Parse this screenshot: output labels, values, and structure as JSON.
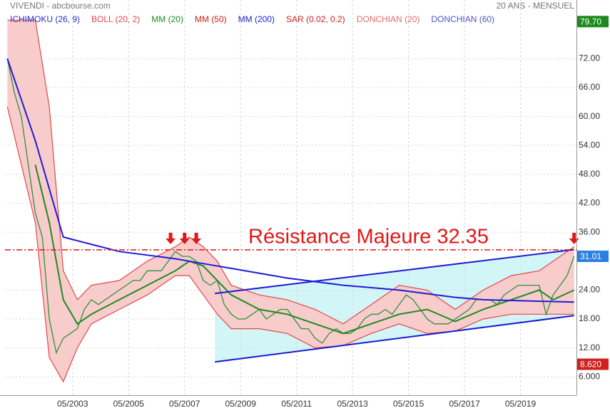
{
  "chart_data": {
    "type": "line",
    "title": "VIVENDI - abcbourse.com",
    "subtitle": "20 ANS - MENSUEL",
    "xlim": [
      "12/2000",
      "05/2021"
    ],
    "xticks": [
      "05/2003",
      "05/2005",
      "05/2007",
      "05/2009",
      "05/2011",
      "05/2013",
      "05/2015",
      "05/2017",
      "05/2019"
    ],
    "ylim": [
      2.2,
      82.4
    ],
    "yticks": [
      {
        "value": 6,
        "label": "6.000"
      },
      {
        "value": 12,
        "label": "12.00"
      },
      {
        "value": 18,
        "label": "18.00"
      },
      {
        "value": 24,
        "label": "24.00"
      },
      {
        "value": 36,
        "label": "36.00"
      },
      {
        "value": 42,
        "label": "42.00"
      },
      {
        "value": 48,
        "label": "48.00"
      },
      {
        "value": 54,
        "label": "54.00"
      },
      {
        "value": 60,
        "label": "60.00"
      },
      {
        "value": 66,
        "label": "66.00"
      },
      {
        "value": 72,
        "label": "72.00"
      }
    ],
    "grid": true,
    "indicators": [
      {
        "name": "ICHIMOKU (26, 9)",
        "color": "#2a2ad0"
      },
      {
        "name": "BOLL (20, 2)",
        "color": "#e04848",
        "fill": "#f9cccc",
        "x": [
          "01/2001",
          "01/2002",
          "07/2002",
          "01/2003",
          "07/2003",
          "01/2004",
          "01/2005",
          "01/2006",
          "01/2007",
          "07/2007",
          "01/2008",
          "07/2008",
          "01/2009",
          "01/2010",
          "01/2011",
          "01/2012",
          "01/2013",
          "01/2014",
          "01/2015",
          "01/2016",
          "01/2017",
          "01/2018",
          "01/2019",
          "01/2020",
          "04/2021"
        ],
        "upper": [
          80,
          80,
          62,
          28,
          22,
          25,
          26,
          30,
          33,
          35,
          33,
          30,
          25,
          23,
          22,
          20,
          17,
          21,
          25,
          24,
          20,
          24,
          27,
          28,
          33
        ],
        "lower": [
          62,
          38,
          10,
          5,
          12,
          17,
          20,
          23,
          27,
          27,
          23,
          19,
          16,
          16,
          15,
          12,
          12.5,
          15,
          17,
          15,
          15.5,
          18,
          19,
          19,
          19
        ]
      },
      {
        "name": "MM (20)",
        "color": "#1e8a1e",
        "x": [
          "01/2002",
          "07/2002",
          "01/2003",
          "07/2003",
          "01/2004",
          "01/2005",
          "01/2006",
          "01/2007",
          "07/2007",
          "01/2008",
          "07/2008",
          "01/2009",
          "01/2010",
          "01/2011",
          "01/2012",
          "01/2013",
          "01/2014",
          "01/2015",
          "01/2016",
          "01/2017",
          "01/2018",
          "01/2019",
          "01/2020",
          "07/2020",
          "04/2021"
        ],
        "values": [
          50,
          38,
          22,
          17,
          19,
          22,
          25,
          28,
          30,
          29,
          26,
          23,
          20,
          19,
          17,
          15,
          17,
          19,
          20,
          17.5,
          20,
          22,
          24,
          22,
          24
        ]
      },
      {
        "name": "MM (50)",
        "color": "#d02020"
      },
      {
        "name": "MM (200)",
        "color": "#1c1cd8",
        "x": [
          "01/2001",
          "01/2002",
          "01/2003",
          "01/2004",
          "01/2005",
          "01/2007",
          "01/2008",
          "01/2009",
          "01/2011",
          "01/2013",
          "01/2015",
          "01/2017",
          "01/2018",
          "04/2021"
        ],
        "values": [
          72,
          55,
          35,
          33.5,
          32,
          30.5,
          29.5,
          28.5,
          26.5,
          25,
          24,
          22.5,
          22,
          21.5
        ]
      },
      {
        "name": "SAR (0.02, 0.2)",
        "color": "#d02020"
      },
      {
        "name": "DONCHIAN (20)",
        "color": "#e86a6a"
      },
      {
        "name": "DONCHIAN (60)",
        "color": "#5050c8"
      }
    ],
    "price": {
      "color": "#2f8f3f",
      "x": [
        "01/2001",
        "04/2001",
        "07/2001",
        "10/2001",
        "01/2002",
        "04/2002",
        "07/2002",
        "10/2002",
        "01/2003",
        "04/2003",
        "07/2003",
        "10/2003",
        "01/2004",
        "04/2004",
        "07/2004",
        "10/2004",
        "01/2005",
        "04/2005",
        "07/2005",
        "10/2005",
        "01/2006",
        "04/2006",
        "07/2006",
        "10/2006",
        "01/2007",
        "04/2007",
        "07/2007",
        "10/2007",
        "01/2008",
        "04/2008",
        "07/2008",
        "10/2008",
        "01/2009",
        "04/2009",
        "07/2009",
        "10/2009",
        "01/2010",
        "04/2010",
        "07/2010",
        "10/2010",
        "01/2011",
        "04/2011",
        "07/2011",
        "10/2011",
        "01/2012",
        "04/2012",
        "07/2012",
        "10/2012",
        "01/2013",
        "04/2013",
        "07/2013",
        "10/2013",
        "01/2014",
        "04/2014",
        "07/2014",
        "10/2014",
        "01/2015",
        "04/2015",
        "07/2015",
        "10/2015",
        "01/2016",
        "04/2016",
        "07/2016",
        "10/2016",
        "01/2017",
        "04/2017",
        "07/2017",
        "10/2017",
        "01/2018",
        "04/2018",
        "07/2018",
        "10/2018",
        "01/2019",
        "04/2019",
        "07/2019",
        "10/2019",
        "01/2020",
        "04/2020",
        "07/2020",
        "10/2020",
        "01/2021",
        "04/2021"
      ],
      "values": [
        72,
        65,
        60,
        50,
        40,
        35,
        18,
        11,
        14,
        15,
        16,
        20,
        22,
        21,
        22,
        23,
        24,
        25,
        26,
        26,
        28,
        28,
        28,
        30,
        32,
        31,
        31,
        30,
        26,
        25,
        26,
        21,
        19,
        18,
        18,
        19,
        20,
        18,
        19,
        20,
        20,
        18,
        16,
        16,
        14,
        13,
        15,
        16,
        15,
        15,
        16,
        18,
        19,
        19,
        20,
        19,
        21,
        23,
        22,
        20,
        18,
        17,
        17,
        17,
        18,
        19,
        20,
        22,
        22,
        22,
        21,
        23,
        24,
        25,
        25,
        25,
        25,
        19,
        23,
        25,
        27,
        31.01
      ]
    },
    "channel": {
      "color": "#1a1ad0",
      "fill": "#d2f6f8",
      "x": [
        "06/2008",
        "04/2021"
      ],
      "upper": [
        23.3,
        32.4
      ],
      "lower": [
        9.1,
        18.7
      ]
    },
    "resistance": {
      "value": 32.35,
      "label": "Résistance Majeure 32.35",
      "color": "#e01818"
    },
    "arrows": {
      "color": "#e01818",
      "x": [
        "11/2006",
        "05/2007",
        "10/2007",
        "04/2021"
      ]
    },
    "badges": [
      {
        "value": 79.7,
        "label": "79.70",
        "color": "#1e8a1e"
      },
      {
        "value": 31.01,
        "label": "31.01",
        "color": "#2a7fe0"
      },
      {
        "value": 8.62,
        "label": "8.620",
        "color": "#d02020"
      }
    ]
  }
}
